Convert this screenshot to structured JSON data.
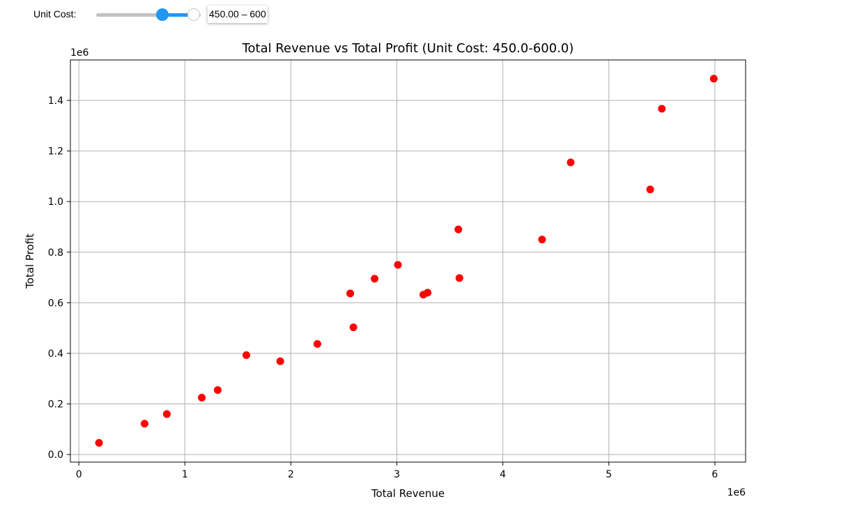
{
  "controls": {
    "slider_label": "Unit Cost:",
    "range_readout": "450.00 – 600",
    "low_fraction": 0.75,
    "high_fraction": 1.0,
    "accent_color": "#2196f3"
  },
  "chart_data": {
    "type": "scatter",
    "title": "Total Revenue vs Total Profit (Unit Cost: 450.0-600.0)",
    "xlabel": "Total Revenue",
    "ylabel": "Total Profit",
    "x_offset_text": "1e6",
    "y_offset_text": "1e6",
    "xlim": [
      -0.08,
      6.29
    ],
    "ylim": [
      -0.03,
      1.56
    ],
    "xticks": [
      0,
      1,
      2,
      3,
      4,
      5,
      6
    ],
    "xtick_labels": [
      "0",
      "1",
      "2",
      "3",
      "4",
      "5",
      "6"
    ],
    "yticks": [
      0.0,
      0.2,
      0.4,
      0.6,
      0.8,
      1.0,
      1.2,
      1.4
    ],
    "ytick_labels": [
      "0.0",
      "0.2",
      "0.4",
      "0.6",
      "0.8",
      "1.0",
      "1.2",
      "1.4"
    ],
    "grid": true,
    "point_color": "#ff0000",
    "points": [
      {
        "x": 0.19,
        "y": 0.046
      },
      {
        "x": 0.62,
        "y": 0.122
      },
      {
        "x": 0.83,
        "y": 0.16
      },
      {
        "x": 1.16,
        "y": 0.225
      },
      {
        "x": 1.31,
        "y": 0.255
      },
      {
        "x": 1.58,
        "y": 0.393
      },
      {
        "x": 1.9,
        "y": 0.369
      },
      {
        "x": 2.25,
        "y": 0.437
      },
      {
        "x": 2.56,
        "y": 0.637
      },
      {
        "x": 2.59,
        "y": 0.503
      },
      {
        "x": 2.79,
        "y": 0.695
      },
      {
        "x": 3.01,
        "y": 0.75
      },
      {
        "x": 3.25,
        "y": 0.632
      },
      {
        "x": 3.29,
        "y": 0.64
      },
      {
        "x": 3.58,
        "y": 0.89
      },
      {
        "x": 3.59,
        "y": 0.698
      },
      {
        "x": 4.37,
        "y": 0.85
      },
      {
        "x": 4.64,
        "y": 1.155
      },
      {
        "x": 5.39,
        "y": 1.048
      },
      {
        "x": 5.5,
        "y": 1.367
      },
      {
        "x": 5.99,
        "y": 1.486
      }
    ]
  }
}
